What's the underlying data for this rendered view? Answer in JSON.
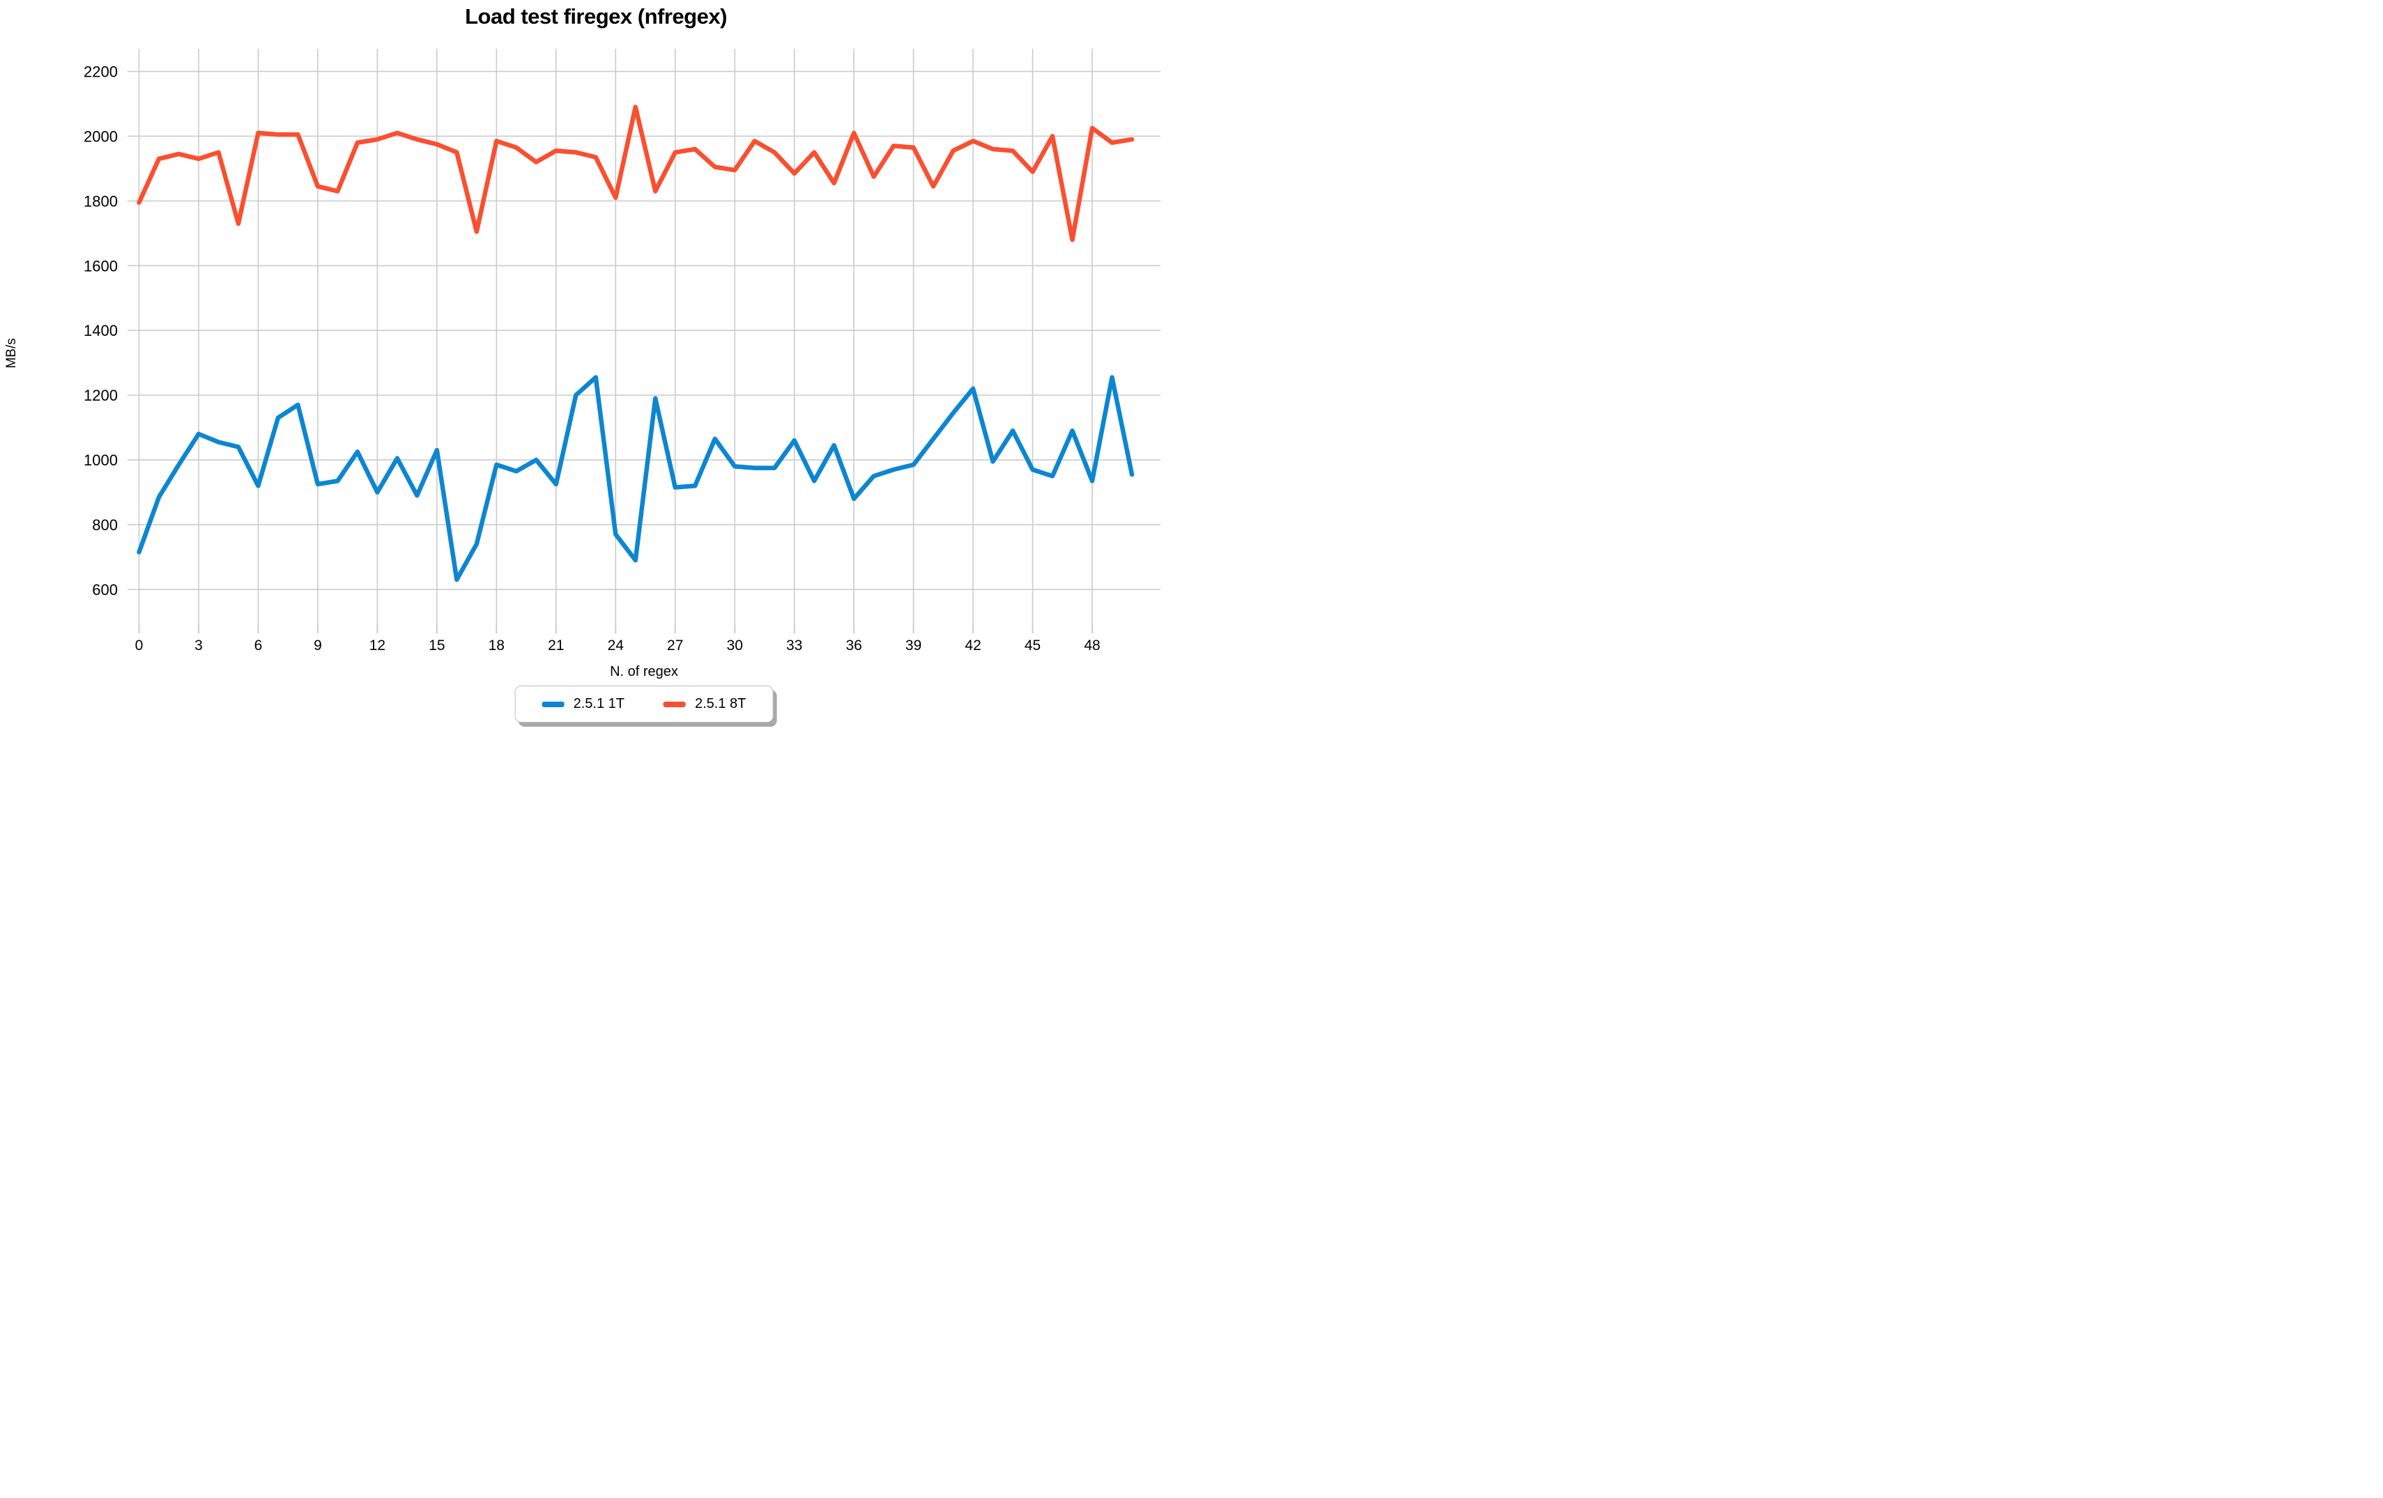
{
  "title": "Load test firegex (nfregex)",
  "axes": {
    "x_label": "N. of regex",
    "y_label": "MB/s",
    "y_ticks": [
      600,
      800,
      1000,
      1200,
      1400,
      1600,
      1800,
      2000,
      2200
    ],
    "x_ticks": [
      0,
      3,
      6,
      9,
      12,
      15,
      18,
      21,
      24,
      27,
      30,
      33,
      36,
      39,
      42,
      45,
      48
    ]
  },
  "colors": {
    "series_1t": "#0d86d1",
    "series_8t": "#fa4f30",
    "grid": "#cbcbcb",
    "text": "#000000"
  },
  "legend": [
    {
      "label": "2.5.1 1T",
      "color": "#0d86d1"
    },
    {
      "label": "2.5.1 8T",
      "color": "#fa4f30"
    }
  ],
  "chart_data": {
    "type": "line",
    "title": "Load test firegex (nfregex)",
    "xlabel": "N. of regex",
    "ylabel": "MB/s",
    "x": [
      0,
      1,
      2,
      3,
      4,
      5,
      6,
      7,
      8,
      9,
      10,
      11,
      12,
      13,
      14,
      15,
      16,
      17,
      18,
      19,
      20,
      21,
      22,
      23,
      24,
      25,
      26,
      27,
      28,
      29,
      30,
      31,
      32,
      33,
      34,
      35,
      36,
      37,
      38,
      39,
      40,
      41,
      42,
      43,
      44,
      45,
      46,
      47,
      48,
      49,
      50
    ],
    "series": [
      {
        "name": "2.5.1 1T",
        "color": "#0d86d1",
        "values": [
          715,
          885,
          985,
          1080,
          1055,
          1040,
          920,
          1130,
          1170,
          925,
          935,
          1025,
          900,
          1005,
          890,
          1030,
          630,
          740,
          985,
          965,
          1000,
          925,
          1200,
          1255,
          770,
          690,
          1190,
          915,
          920,
          1065,
          980,
          975,
          975,
          1060,
          935,
          1045,
          880,
          950,
          970,
          985,
          1065,
          1145,
          1220,
          995,
          1090,
          970,
          950,
          1090,
          935,
          1255,
          955
        ]
      },
      {
        "name": "2.5.1 8T",
        "color": "#fa4f30",
        "values": [
          1795,
          1930,
          1945,
          1930,
          1950,
          1730,
          2010,
          2005,
          2005,
          1845,
          1830,
          1980,
          1990,
          2010,
          1990,
          1975,
          1950,
          1705,
          1985,
          1965,
          1920,
          1955,
          1950,
          1935,
          1810,
          2090,
          1830,
          1950,
          1960,
          1905,
          1895,
          1985,
          1950,
          1885,
          1950,
          1855,
          2010,
          1875,
          1970,
          1965,
          1845,
          1955,
          1985,
          1960,
          1955,
          1890,
          2000,
          1680,
          2025,
          1980,
          1990
        ]
      }
    ],
    "ylim": [
      490,
      2270
    ],
    "x_tick_step": 3,
    "grid": true,
    "legend_position": "bottom-center"
  }
}
